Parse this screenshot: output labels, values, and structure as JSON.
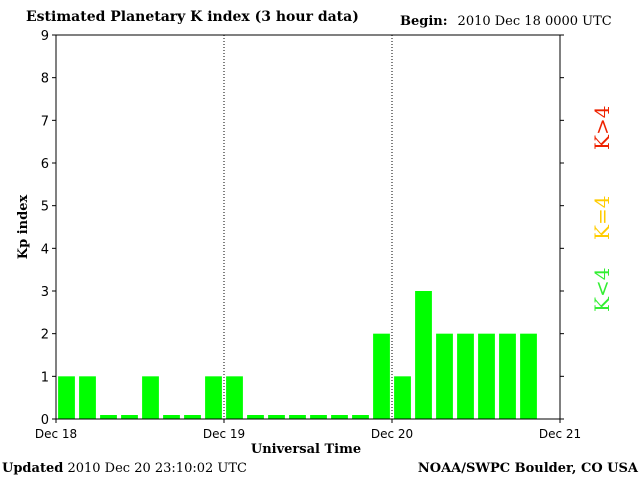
{
  "header": {
    "title": "Estimated Planetary K index (3 hour data)",
    "begin_label": "Begin:",
    "begin_value": "2010 Dec 18 0000 UTC"
  },
  "footer": {
    "updated_label": "Updated",
    "updated_value": "2010 Dec 20 23:10:02 UTC",
    "credit": "NOAA/SWPC Boulder, CO USA"
  },
  "chart_data": {
    "type": "bar",
    "ylabel": "Kp index",
    "xlabel": "Universal Time",
    "ylim": [
      0,
      9
    ],
    "yticks": [
      "0",
      "1",
      "2",
      "3",
      "4",
      "5",
      "6",
      "7",
      "8",
      "9"
    ],
    "xticks": [
      "Dec 18",
      "Dec 19",
      "Dec 20",
      "Dec 21"
    ],
    "values": [
      1,
      1,
      0,
      0,
      1,
      0,
      0,
      1,
      1,
      0,
      0,
      0,
      0,
      0,
      0,
      2,
      1,
      3,
      2,
      2,
      2,
      2,
      2
    ],
    "bar_color": "#00ff00",
    "day_dividers": "dotted",
    "legend": [
      {
        "label": "K<4",
        "color": "#33ee33"
      },
      {
        "label": "K=4",
        "color": "#ffcc00"
      },
      {
        "label": "K>4",
        "color": "#ee2200"
      }
    ]
  }
}
